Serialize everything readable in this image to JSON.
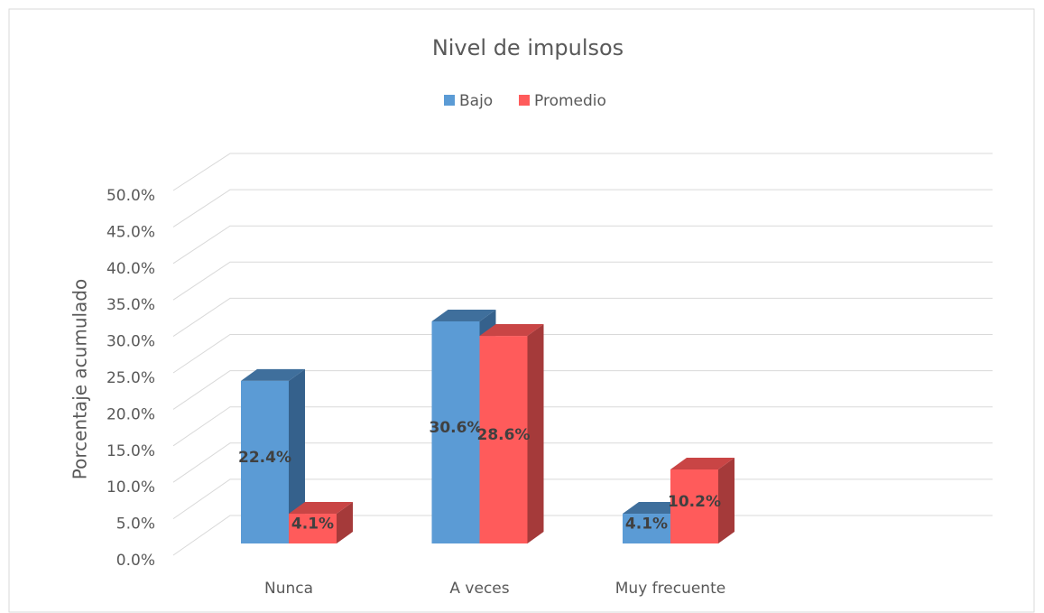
{
  "chart_data": {
    "type": "bar3d",
    "title": "Nivel de impulsos",
    "ylabel": "Porcentaje acumulado",
    "categories": [
      "Nunca",
      "A veces",
      "Muy frecuente"
    ],
    "series": [
      {
        "name": "Bajo",
        "color": "#5b9bd5",
        "values": [
          22.4,
          30.6,
          4.1
        ],
        "value_labels": [
          "22.4%",
          "30.6%",
          "4.1%"
        ]
      },
      {
        "name": "Promedio",
        "color": "#ff5b5b",
        "values": [
          4.1,
          28.6,
          10.2
        ],
        "value_labels": [
          "4.1%",
          "28.6%",
          "10.2%"
        ]
      }
    ],
    "ylim": [
      0,
      50
    ],
    "yticks": [
      {
        "value": 0,
        "label": "0.0%"
      },
      {
        "value": 5,
        "label": "5.0%"
      },
      {
        "value": 10,
        "label": "10.0%"
      },
      {
        "value": 15,
        "label": "15.0%"
      },
      {
        "value": 20,
        "label": "20.0%"
      },
      {
        "value": 25,
        "label": "25.0%"
      },
      {
        "value": 30,
        "label": "30.0%"
      },
      {
        "value": 35,
        "label": "35.0%"
      },
      {
        "value": 40,
        "label": "40.0%"
      },
      {
        "value": 45,
        "label": "45.0%"
      },
      {
        "value": 50,
        "label": "50.0%"
      }
    ],
    "grid": true,
    "legend": "top"
  }
}
